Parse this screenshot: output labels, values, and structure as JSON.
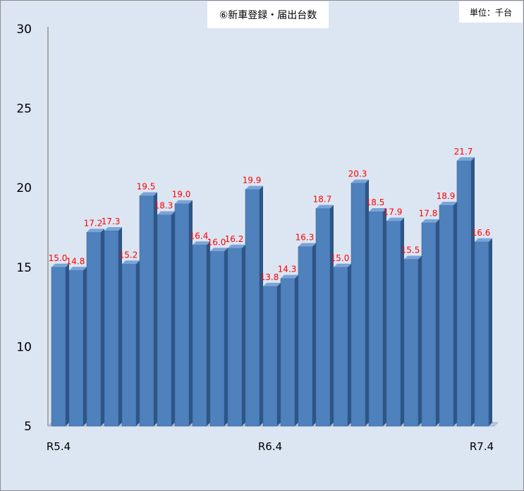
{
  "title": "⑥新車登録・届出台数",
  "unit": "単位：千台",
  "colors": {
    "background": "#dce6f2",
    "bar_front": "#4f81bd",
    "bar_side": "#2d5585",
    "bar_top": "#7aa3d8",
    "data_label": "#ff0000"
  },
  "chart_data": {
    "type": "bar",
    "title": "⑥新車登録・届出台数",
    "unit": "単位：千台",
    "x_tick_labels": [
      "R5.4",
      "R6.4",
      "R7.4"
    ],
    "categories": [
      "R5.4",
      "",
      "",
      "",
      "",
      "",
      "",
      "",
      "",
      "",
      "",
      "",
      "R6.4",
      "",
      "",
      "",
      "",
      "",
      "",
      "",
      "",
      "",
      "",
      "",
      "R7.4"
    ],
    "values": [
      15.0,
      14.8,
      17.2,
      17.3,
      15.2,
      19.5,
      18.3,
      19.0,
      16.4,
      16.0,
      16.2,
      19.9,
      13.8,
      14.3,
      16.3,
      18.7,
      15.0,
      20.3,
      18.5,
      17.9,
      15.5,
      17.8,
      18.9,
      21.7,
      16.6
    ],
    "data_labels": [
      "15.0",
      "14.8",
      "17.2",
      "17.3",
      "15.2",
      "19.5",
      "18.3",
      "19.0",
      "16.4",
      "16.0",
      "16.2",
      "19.9",
      "13.8",
      "14.3",
      "16.3",
      "18.7",
      "15.0",
      "20.3",
      "18.5",
      "17.9",
      "15.5",
      "17.8",
      "18.9",
      "21.7",
      "16.6"
    ],
    "ylim": [
      5,
      30
    ],
    "yticks": [
      "30",
      "25",
      "20",
      "15",
      "10",
      "5"
    ],
    "grid": false,
    "xlabel": "",
    "ylabel": ""
  }
}
